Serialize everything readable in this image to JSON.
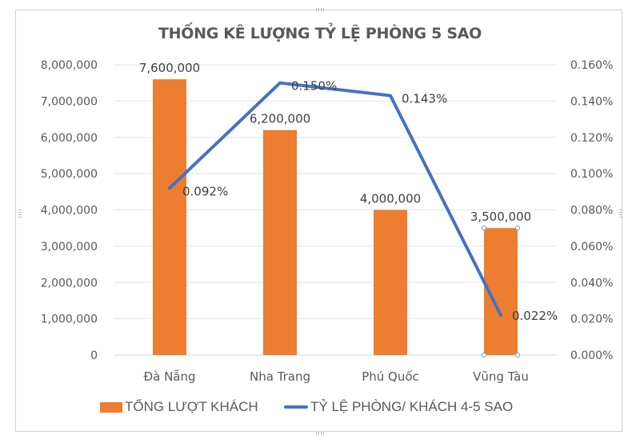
{
  "chart_data": {
    "type": "bar+line",
    "title": "THỐNG KÊ LƯỢNG TỶ LỆ PHÒNG 5 SAO",
    "categories": [
      "Đà Nẵng",
      "Nha Trang",
      "Phú Quốc",
      "Vũng Tàu"
    ],
    "series": [
      {
        "name": "TỔNG LƯỢT KHÁCH",
        "type": "bar",
        "axis": "left",
        "color": "#ed7d31",
        "values": [
          7600000,
          6200000,
          4000000,
          3500000
        ],
        "labels": [
          "7,600,000",
          "6,200,000",
          "4,000,000",
          "3,500,000"
        ]
      },
      {
        "name": "TỶ LỆ PHÒNG/ KHÁCH 4-5 SAO",
        "type": "line",
        "axis": "right",
        "color": "#4472c4",
        "values": [
          0.092,
          0.15,
          0.143,
          0.022
        ],
        "labels": [
          "0.092%",
          "0.150%",
          "0.143%",
          "0.022%"
        ]
      }
    ],
    "y_left": {
      "ylim": [
        0,
        8000000
      ],
      "ticks": [
        "0",
        "1,000,000",
        "2,000,000",
        "3,000,000",
        "4,000,000",
        "5,000,000",
        "6,000,000",
        "7,000,000",
        "8,000,000"
      ]
    },
    "y_right": {
      "ylim": [
        0,
        0.16
      ],
      "unit": "%",
      "ticks": [
        "0.000%",
        "0.020%",
        "0.040%",
        "0.060%",
        "0.080%",
        "0.100%",
        "0.120%",
        "0.140%",
        "0.160%"
      ]
    },
    "xlabel": "",
    "ylabel": "",
    "grid": true,
    "legend_position": "bottom"
  }
}
